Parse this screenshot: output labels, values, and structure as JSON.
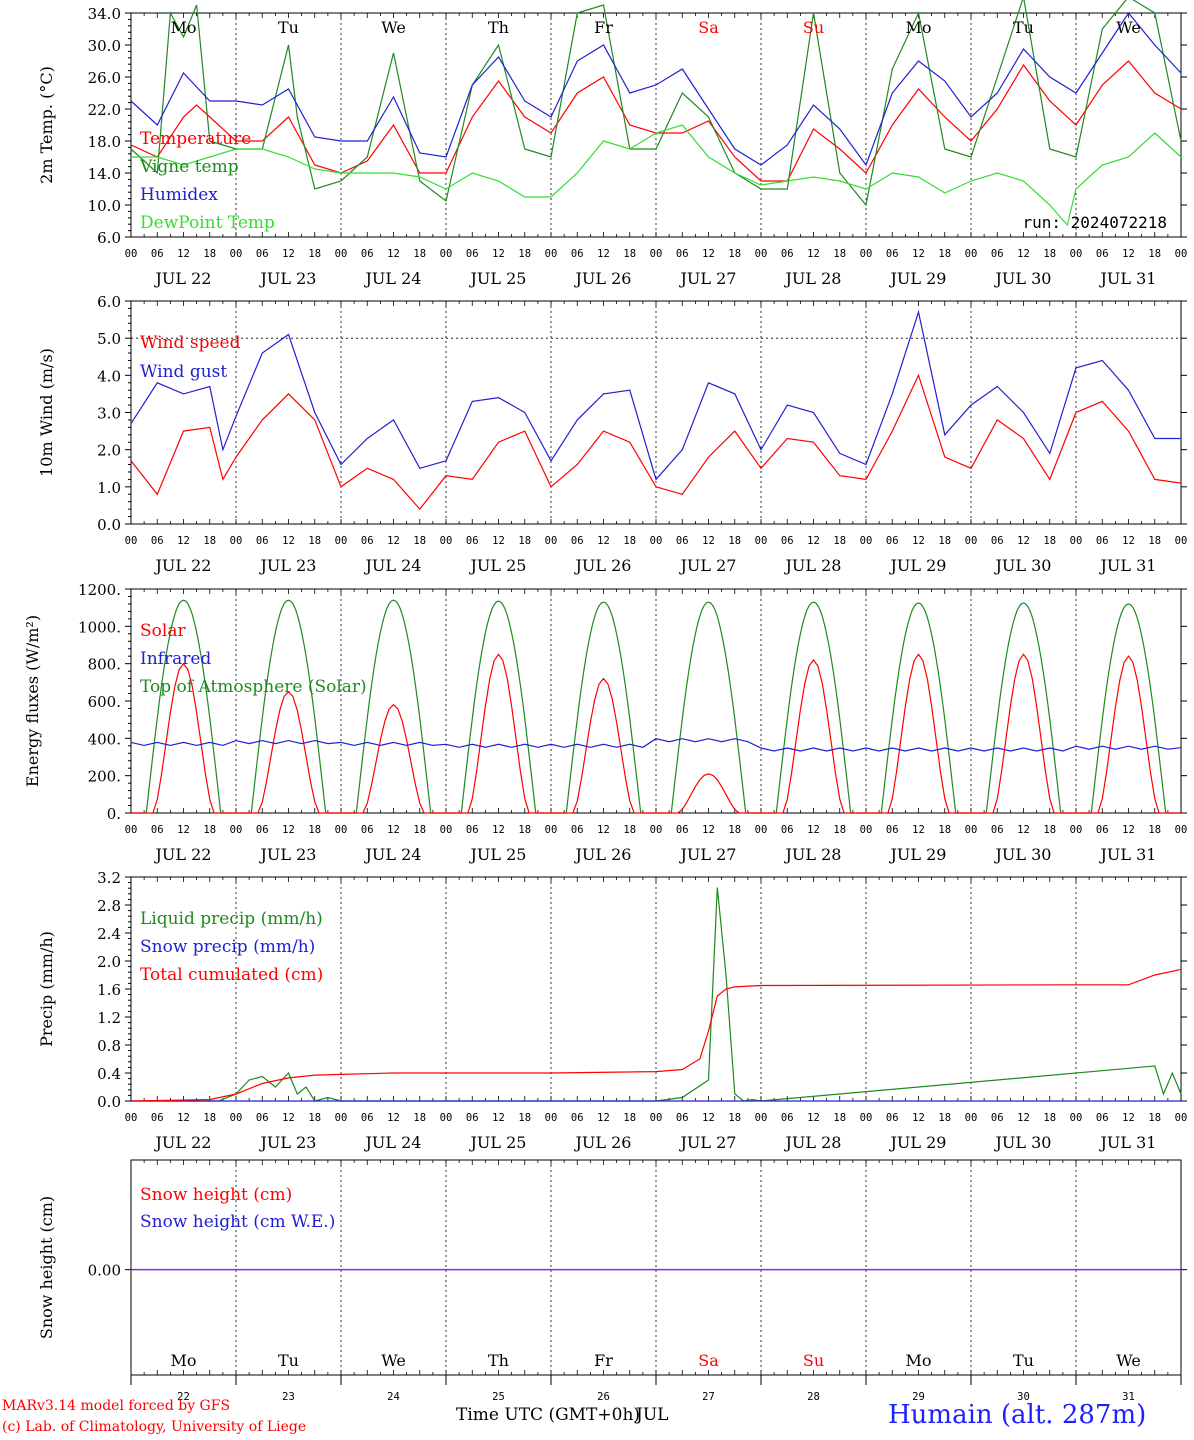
{
  "colors": {
    "red": "#ff0000",
    "darkgreen": "#1f8a1f",
    "blue": "#2020d0",
    "lightgreen": "#33dd33",
    "purple": "#8a2be2",
    "gray": "#555555"
  },
  "hour_labels": [
    "00",
    "06",
    "12",
    "18"
  ],
  "end_hour_label": "00",
  "dates": [
    "JUL 22",
    "JUL 23",
    "JUL 24",
    "JUL 25",
    "JUL 26",
    "JUL 27",
    "JUL 28",
    "JUL 29",
    "JUL 30",
    "JUL 31"
  ],
  "weekdays": [
    "Mo",
    "Tu",
    "We",
    "Th",
    "Fr",
    "Sa",
    "Su",
    "Mo",
    "Tu",
    "We"
  ],
  "weekday_colors": [
    "#000000",
    "#000000",
    "#000000",
    "#000000",
    "#000000",
    "#ff0000",
    "#ff0000",
    "#000000",
    "#000000",
    "#000000"
  ],
  "day_numbers": [
    "22",
    "23",
    "24",
    "25",
    "26",
    "27",
    "28",
    "29",
    "30",
    "31"
  ],
  "footer": {
    "model": "MARv3.14 model forced by GFS",
    "lab": "(c) Lab. of Climatology, University of Liege",
    "xtitle": "Time UTC (GMT+0h)",
    "xtitle_overlay": "JUL",
    "station": "Humain (alt. 287m)"
  },
  "chart_data": [
    {
      "type": "line",
      "ylabel": "2m Temp. (°C)",
      "ylim": [
        6.0,
        34.0
      ],
      "yticks": [
        "6.0",
        "10.0",
        "14.0",
        "18.0",
        "22.0",
        "26.0",
        "30.0",
        "34.0"
      ],
      "annotation": "run: 2024072218",
      "grid": "dotted vertical at 00 UTC",
      "x_unit": "hours since 2024-07-22 00 UTC",
      "series": [
        {
          "name": "Temperature",
          "color": "#ff0000",
          "x": [
            0,
            6,
            12,
            15,
            18,
            24,
            30,
            36,
            42,
            48,
            54,
            60,
            66,
            72,
            78,
            84,
            90,
            96,
            102,
            108,
            114,
            120,
            126,
            132,
            138,
            144,
            150,
            156,
            162,
            168,
            174,
            180,
            186,
            192,
            198,
            204,
            210,
            216,
            222,
            228,
            234,
            240
          ],
          "values": [
            17.5,
            16.0,
            21.0,
            22.5,
            21.0,
            18.0,
            18.0,
            21.0,
            15.0,
            14.0,
            15.5,
            20.0,
            14.0,
            14.0,
            21.0,
            25.5,
            21.0,
            19.0,
            24.0,
            26.0,
            20.0,
            19.0,
            19.0,
            20.5,
            16.0,
            13.0,
            13.0,
            19.5,
            17.0,
            14.0,
            20.0,
            24.5,
            21.0,
            18.0,
            22.0,
            27.5,
            23.0,
            20.0,
            25.0,
            28.0,
            24.0,
            22.0
          ]
        },
        {
          "name": "Vigne temp",
          "color": "#1f8a1f",
          "x": [
            0,
            6,
            9,
            12,
            15,
            18,
            24,
            30,
            36,
            38,
            42,
            48,
            54,
            60,
            66,
            72,
            78,
            84,
            90,
            96,
            102,
            108,
            114,
            120,
            126,
            132,
            138,
            144,
            150,
            156,
            162,
            168,
            174,
            180,
            186,
            192,
            198,
            204,
            210,
            216,
            222,
            228,
            234,
            240
          ],
          "values": [
            17.0,
            14.0,
            34.0,
            31.0,
            35.0,
            18.0,
            17.0,
            17.0,
            30.0,
            21.0,
            12.0,
            13.0,
            16.0,
            29.0,
            13.0,
            10.5,
            25.0,
            30.0,
            17.0,
            16.0,
            34.0,
            35.0,
            17.0,
            17.0,
            24.0,
            21.0,
            14.0,
            12.0,
            12.0,
            34.0,
            14.0,
            10.0,
            27.0,
            34.0,
            17.0,
            16.0,
            26.0,
            36.0,
            17.0,
            16.0,
            32.0,
            36.0,
            34.0,
            18.0
          ]
        },
        {
          "name": "Humidex",
          "color": "#2020d0",
          "x": [
            0,
            6,
            12,
            18,
            24,
            30,
            36,
            42,
            48,
            54,
            60,
            66,
            72,
            78,
            84,
            90,
            96,
            102,
            108,
            114,
            120,
            126,
            132,
            138,
            144,
            150,
            156,
            162,
            168,
            174,
            180,
            186,
            192,
            198,
            204,
            210,
            216,
            222,
            228,
            234,
            240
          ],
          "values": [
            23.0,
            20.0,
            26.5,
            23.0,
            23.0,
            22.5,
            24.5,
            18.5,
            18.0,
            18.0,
            23.5,
            16.5,
            16.0,
            25.0,
            28.5,
            23.0,
            21.0,
            28.0,
            30.0,
            24.0,
            25.0,
            27.0,
            22.0,
            17.0,
            15.0,
            17.5,
            22.5,
            19.5,
            15.0,
            24.0,
            28.0,
            25.5,
            21.0,
            24.0,
            29.5,
            26.0,
            24.0,
            29.0,
            34.0,
            30.0,
            26.5
          ]
        },
        {
          "name": "DewPoint Temp",
          "color": "#33dd33",
          "x": [
            0,
            6,
            12,
            18,
            24,
            30,
            36,
            42,
            48,
            54,
            60,
            66,
            72,
            78,
            84,
            90,
            96,
            102,
            108,
            114,
            120,
            126,
            132,
            138,
            144,
            150,
            156,
            162,
            168,
            174,
            180,
            186,
            192,
            198,
            204,
            210,
            214,
            216,
            222,
            228,
            234,
            240
          ],
          "values": [
            16.0,
            16.0,
            15.0,
            16.0,
            17.0,
            17.0,
            16.0,
            14.5,
            14.0,
            14.0,
            14.0,
            13.5,
            12.0,
            14.0,
            13.0,
            11.0,
            11.0,
            14.0,
            18.0,
            17.0,
            19.0,
            20.0,
            16.0,
            14.0,
            12.5,
            13.0,
            13.5,
            13.0,
            12.0,
            14.0,
            13.5,
            11.5,
            13.0,
            14.0,
            13.0,
            10.0,
            7.5,
            12.0,
            15.0,
            16.0,
            19.0,
            16.0
          ]
        }
      ],
      "legend": [
        "Temperature",
        "Vigne temp",
        "Humidex",
        "DewPoint Temp"
      ]
    },
    {
      "type": "line",
      "ylabel": "10m Wind (m/s)",
      "ylim": [
        0.0,
        6.0
      ],
      "yticks": [
        "0.0",
        "1.0",
        "2.0",
        "3.0",
        "4.0",
        "5.0",
        "6.0"
      ],
      "reference_line": 5.0,
      "x_unit": "hours since 2024-07-22 00 UTC",
      "series": [
        {
          "name": "Wind speed",
          "color": "#ff0000",
          "x": [
            0,
            6,
            12,
            18,
            21,
            24,
            30,
            36,
            42,
            48,
            54,
            60,
            66,
            72,
            78,
            84,
            90,
            96,
            102,
            108,
            114,
            120,
            126,
            132,
            138,
            144,
            150,
            156,
            162,
            168,
            174,
            180,
            186,
            192,
            198,
            204,
            210,
            216,
            222,
            228,
            234,
            240
          ],
          "values": [
            1.7,
            0.8,
            2.5,
            2.6,
            1.2,
            1.8,
            2.8,
            3.5,
            2.8,
            1.0,
            1.5,
            1.2,
            0.4,
            1.3,
            1.2,
            2.2,
            2.5,
            1.0,
            1.6,
            2.5,
            2.2,
            1.0,
            0.8,
            1.8,
            2.5,
            1.5,
            2.3,
            2.2,
            1.3,
            1.2,
            2.5,
            4.0,
            1.8,
            1.5,
            2.8,
            2.3,
            1.2,
            3.0,
            3.3,
            2.5,
            1.2,
            1.1
          ]
        },
        {
          "name": "Wind gust",
          "color": "#2020d0",
          "x": [
            0,
            6,
            12,
            18,
            21,
            24,
            30,
            36,
            42,
            48,
            54,
            60,
            66,
            72,
            78,
            84,
            90,
            96,
            102,
            108,
            114,
            120,
            126,
            132,
            138,
            144,
            150,
            156,
            162,
            168,
            174,
            180,
            186,
            192,
            198,
            204,
            210,
            216,
            222,
            228,
            234,
            240
          ],
          "values": [
            2.7,
            3.8,
            3.5,
            3.7,
            2.0,
            2.9,
            4.6,
            5.1,
            3.0,
            1.6,
            2.3,
            2.8,
            1.5,
            1.7,
            3.3,
            3.4,
            3.0,
            1.7,
            2.8,
            3.5,
            3.6,
            1.2,
            2.0,
            3.8,
            3.5,
            2.0,
            3.2,
            3.0,
            1.9,
            1.6,
            3.5,
            5.7,
            2.4,
            3.2,
            3.7,
            3.0,
            1.9,
            4.2,
            4.4,
            3.6,
            2.3,
            2.3
          ]
        }
      ],
      "legend": [
        "Wind speed",
        "Wind gust"
      ]
    },
    {
      "type": "line",
      "ylabel": "Energy fluxes (W/m²)",
      "ylim": [
        0,
        1200
      ],
      "yticks": [
        "0.",
        "200.",
        "400.",
        "600.",
        "800.",
        "1000.",
        "1200."
      ],
      "x_unit": "hours since 2024-07-22 00 UTC",
      "series": [
        {
          "name": "Solar",
          "color": "#ff0000",
          "daily_peaks": [
            800,
            650,
            580,
            850,
            720,
            210,
            820,
            850,
            850,
            840
          ]
        },
        {
          "name": "Infrared",
          "color": "#2020d0",
          "daily_means": [
            370,
            380,
            370,
            360,
            360,
            390,
            340,
            340,
            340,
            350
          ]
        },
        {
          "name": "Top of Atmosphere (Solar)",
          "color": "#1f8a1f",
          "daily_peaks": [
            1140,
            1140,
            1140,
            1135,
            1130,
            1130,
            1130,
            1125,
            1125,
            1120
          ]
        }
      ],
      "legend": [
        "Solar",
        "Infrared",
        "Top of Atmosphere (Solar)"
      ]
    },
    {
      "type": "line",
      "ylabel": "Precip (mm/h)",
      "ylim": [
        0.0,
        3.2
      ],
      "yticks": [
        "0.0",
        "0.4",
        "0.8",
        "1.2",
        "1.6",
        "2.0",
        "2.4",
        "2.8",
        "3.2"
      ],
      "x_unit": "hours since 2024-07-22 00 UTC",
      "series": [
        {
          "name": "Liquid precip (mm/h)",
          "color": "#1f8a1f",
          "x": [
            0,
            20,
            24,
            27,
            30,
            33,
            36,
            38,
            40,
            42,
            45,
            48,
            54,
            120,
            126,
            132,
            134,
            136,
            138,
            140,
            142,
            144,
            234,
            236,
            238,
            240
          ],
          "values": [
            0,
            0,
            0.1,
            0.3,
            0.35,
            0.2,
            0.4,
            0.1,
            0.2,
            0,
            0.05,
            0,
            0,
            0,
            0.05,
            0.3,
            3.05,
            1.8,
            0.1,
            0,
            0.02,
            0,
            0.5,
            0.1,
            0.4,
            0.1
          ]
        },
        {
          "name": "Snow precip (mm/h)",
          "color": "#2020d0",
          "x": [
            0,
            240
          ],
          "values": [
            0,
            0
          ]
        },
        {
          "name": "Total cumulated (cm)",
          "color": "#ff0000",
          "x": [
            0,
            18,
            24,
            30,
            36,
            42,
            48,
            60,
            96,
            120,
            126,
            130,
            132,
            134,
            136,
            138,
            144,
            216,
            228,
            234,
            240
          ],
          "values": [
            0,
            0.02,
            0.1,
            0.25,
            0.33,
            0.37,
            0.38,
            0.4,
            0.4,
            0.42,
            0.45,
            0.6,
            1.0,
            1.5,
            1.6,
            1.63,
            1.65,
            1.66,
            1.66,
            1.8,
            1.88
          ]
        }
      ],
      "legend": [
        "Liquid precip (mm/h)",
        "Snow precip (mm/h)",
        "Total cumulated (cm)"
      ]
    },
    {
      "type": "line",
      "ylabel": "Snow height (cm)",
      "yticks": [
        "0.00"
      ],
      "series": [
        {
          "name": "Snow height (cm)",
          "color": "#ff0000",
          "x": [
            0,
            240
          ],
          "values": [
            0,
            0
          ]
        },
        {
          "name": "Snow height (cm W.E.)",
          "color": "#2020d0",
          "x": [
            0,
            240
          ],
          "values": [
            0,
            0
          ]
        }
      ],
      "legend": [
        "Snow height (cm)",
        "Snow height (cm W.E.)"
      ]
    }
  ]
}
